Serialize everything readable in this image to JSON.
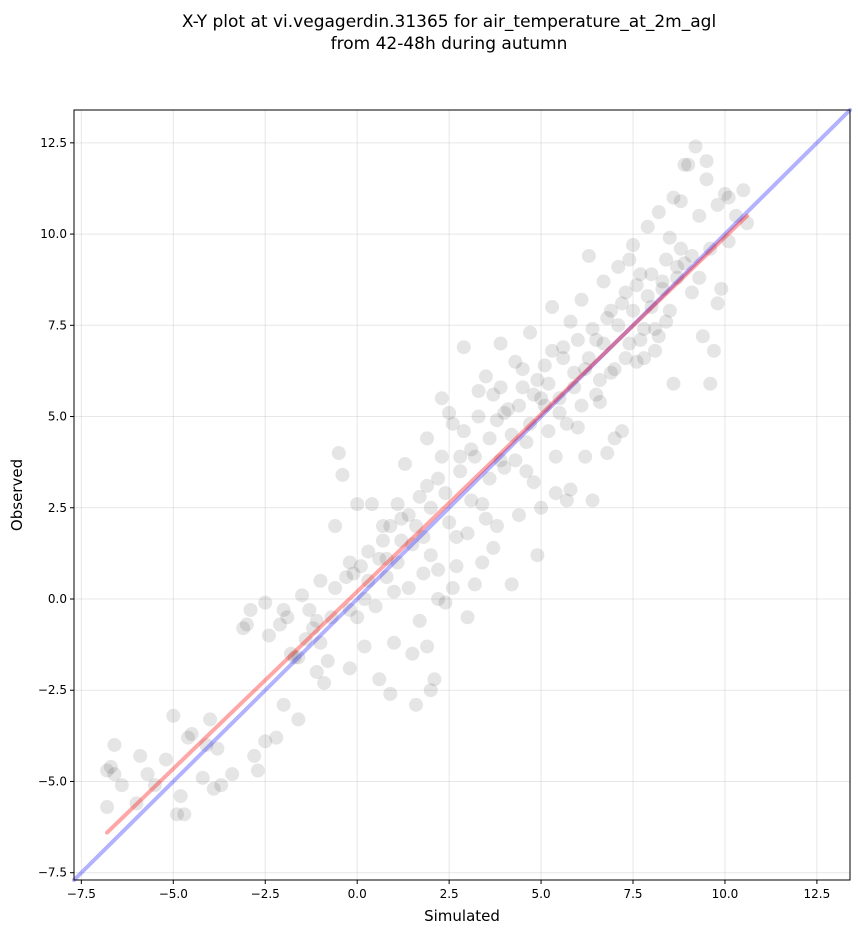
{
  "chart_data": {
    "type": "scatter",
    "title_line1": "X-Y plot at vi.vegagerdin.31365 for air_temperature_at_2m_agl",
    "title_line2": "from 42-48h during autumn",
    "xlabel": "Simulated",
    "ylabel": "Observed",
    "xlim": [
      -7.7,
      13.4
    ],
    "ylim": [
      -7.7,
      13.4
    ],
    "xticks": [
      -7.5,
      -5.0,
      -2.5,
      0.0,
      2.5,
      5.0,
      7.5,
      10.0,
      12.5
    ],
    "yticks": [
      -7.5,
      -5.0,
      -2.5,
      0.0,
      2.5,
      5.0,
      7.5,
      10.0,
      12.5
    ],
    "xtick_labels": [
      "−7.5",
      "−5.0",
      "−2.5",
      "0.0",
      "2.5",
      "5.0",
      "7.5",
      "10.0",
      "12.5"
    ],
    "ytick_labels": [
      "−7.5",
      "−5.0",
      "−2.5",
      "0.0",
      "2.5",
      "5.0",
      "7.5",
      "10.0",
      "12.5"
    ],
    "grid": true,
    "point_color": "#000000",
    "point_alpha": 0.1,
    "identity_line": {
      "x": [
        -7.7,
        13.4
      ],
      "y": [
        -7.7,
        13.4
      ],
      "color": "#0000ff",
      "alpha": 0.3
    },
    "fit_line": {
      "x": [
        -6.8,
        10.6
      ],
      "y": [
        -6.4,
        10.5
      ],
      "color": "#ff0000",
      "alpha": 0.35
    },
    "points": [
      [
        -6.8,
        -4.7
      ],
      [
        -6.7,
        -4.6
      ],
      [
        -6.6,
        -4.0
      ],
      [
        -6.6,
        -4.8
      ],
      [
        -6.8,
        -5.7
      ],
      [
        -6.4,
        -5.1
      ],
      [
        -6.0,
        -5.6
      ],
      [
        -5.9,
        -4.3
      ],
      [
        -5.7,
        -4.8
      ],
      [
        -5.5,
        -5.1
      ],
      [
        -5.2,
        -4.4
      ],
      [
        -5.0,
        -3.2
      ],
      [
        -4.9,
        -5.9
      ],
      [
        -4.8,
        -5.4
      ],
      [
        -4.7,
        -5.9
      ],
      [
        -4.6,
        -3.8
      ],
      [
        -4.5,
        -3.7
      ],
      [
        -4.2,
        -4.9
      ],
      [
        -4.1,
        -4.0
      ],
      [
        -4.0,
        -3.3
      ],
      [
        -3.9,
        -5.2
      ],
      [
        -3.8,
        -4.1
      ],
      [
        -3.7,
        -5.1
      ],
      [
        -3.4,
        -4.8
      ],
      [
        -2.8,
        -4.3
      ],
      [
        -2.7,
        -4.7
      ],
      [
        -2.5,
        -3.9
      ],
      [
        -2.2,
        -3.8
      ],
      [
        -3.1,
        -0.8
      ],
      [
        -3.0,
        -0.7
      ],
      [
        -2.9,
        -0.3
      ],
      [
        -2.5,
        -0.1
      ],
      [
        -2.4,
        -1.0
      ],
      [
        -2.1,
        -0.7
      ],
      [
        -2.0,
        -0.3
      ],
      [
        -1.9,
        -0.5
      ],
      [
        -1.8,
        -1.5
      ],
      [
        -1.7,
        -1.6
      ],
      [
        -1.5,
        0.1
      ],
      [
        -1.4,
        -1.1
      ],
      [
        -1.3,
        -0.3
      ],
      [
        -1.2,
        -0.8
      ],
      [
        -1.1,
        -0.6
      ],
      [
        -1.0,
        0.5
      ],
      [
        -0.9,
        -2.3
      ],
      [
        -0.8,
        -1.7
      ],
      [
        -0.7,
        -0.5
      ],
      [
        -0.6,
        2.0
      ],
      [
        -0.5,
        4.0
      ],
      [
        -0.4,
        3.4
      ],
      [
        -0.3,
        0.6
      ],
      [
        -0.2,
        -1.9
      ],
      [
        -0.2,
        1.0
      ],
      [
        -0.1,
        0.7
      ],
      [
        0.0,
        2.6
      ],
      [
        0.0,
        -0.5
      ],
      [
        0.1,
        0.9
      ],
      [
        0.2,
        -1.3
      ],
      [
        0.3,
        1.3
      ],
      [
        0.4,
        2.6
      ],
      [
        0.5,
        -0.2
      ],
      [
        0.6,
        -2.2
      ],
      [
        0.7,
        1.6
      ],
      [
        0.8,
        0.6
      ],
      [
        0.9,
        2.0
      ],
      [
        1.0,
        -1.2
      ],
      [
        1.1,
        1.0
      ],
      [
        1.2,
        2.2
      ],
      [
        1.3,
        3.7
      ],
      [
        1.4,
        0.3
      ],
      [
        1.5,
        1.5
      ],
      [
        1.6,
        -2.9
      ],
      [
        1.7,
        2.8
      ],
      [
        1.8,
        0.7
      ],
      [
        1.9,
        4.4
      ],
      [
        2.0,
        1.2
      ],
      [
        2.1,
        -2.2
      ],
      [
        2.2,
        3.3
      ],
      [
        2.3,
        5.5
      ],
      [
        2.4,
        -0.1
      ],
      [
        2.5,
        2.1
      ],
      [
        2.6,
        4.8
      ],
      [
        2.7,
        0.9
      ],
      [
        2.8,
        3.9
      ],
      [
        2.9,
        6.9
      ],
      [
        3.0,
        1.8
      ],
      [
        3.1,
        4.1
      ],
      [
        3.2,
        0.4
      ],
      [
        3.3,
        5.7
      ],
      [
        3.4,
        2.6
      ],
      [
        3.5,
        6.1
      ],
      [
        3.6,
        3.3
      ],
      [
        3.7,
        1.4
      ],
      [
        3.8,
        4.9
      ],
      [
        3.9,
        7.0
      ],
      [
        4.0,
        3.6
      ],
      [
        4.1,
        5.2
      ],
      [
        4.2,
        0.4
      ],
      [
        4.3,
        6.5
      ],
      [
        4.4,
        2.3
      ],
      [
        4.5,
        5.8
      ],
      [
        4.6,
        4.3
      ],
      [
        4.7,
        7.3
      ],
      [
        4.8,
        3.2
      ],
      [
        4.9,
        1.2
      ],
      [
        5.0,
        5.5
      ],
      [
        5.1,
        6.4
      ],
      [
        5.2,
        4.6
      ],
      [
        5.3,
        8.0
      ],
      [
        5.4,
        3.9
      ],
      [
        5.5,
        5.1
      ],
      [
        5.6,
        6.9
      ],
      [
        5.7,
        2.7
      ],
      [
        5.8,
        7.6
      ],
      [
        5.9,
        5.8
      ],
      [
        6.0,
        4.7
      ],
      [
        6.1,
        8.2
      ],
      [
        6.2,
        6.3
      ],
      [
        6.3,
        9.4
      ],
      [
        6.4,
        2.7
      ],
      [
        6.5,
        7.1
      ],
      [
        6.6,
        5.4
      ],
      [
        6.7,
        8.7
      ],
      [
        6.8,
        4.0
      ],
      [
        6.9,
        7.9
      ],
      [
        7.0,
        6.3
      ],
      [
        7.1,
        9.1
      ],
      [
        7.2,
        4.6
      ],
      [
        7.3,
        8.4
      ],
      [
        7.4,
        7.0
      ],
      [
        7.5,
        9.7
      ],
      [
        7.6,
        6.5
      ],
      [
        7.7,
        8.9
      ],
      [
        7.8,
        7.4
      ],
      [
        7.9,
        10.2
      ],
      [
        8.0,
        8.0
      ],
      [
        8.1,
        6.8
      ],
      [
        8.2,
        10.6
      ],
      [
        8.3,
        8.5
      ],
      [
        8.4,
        7.6
      ],
      [
        8.5,
        9.9
      ],
      [
        8.6,
        5.9
      ],
      [
        8.7,
        8.8
      ],
      [
        8.8,
        10.9
      ],
      [
        8.9,
        9.2
      ],
      [
        9.0,
        11.9
      ],
      [
        9.1,
        8.4
      ],
      [
        9.2,
        12.4
      ],
      [
        9.3,
        10.5
      ],
      [
        9.4,
        7.2
      ],
      [
        9.5,
        11.5
      ],
      [
        9.6,
        9.6
      ],
      [
        9.7,
        6.8
      ],
      [
        9.8,
        10.8
      ],
      [
        9.9,
        8.5
      ],
      [
        10.0,
        11.1
      ],
      [
        10.1,
        9.8
      ],
      [
        10.3,
        10.5
      ],
      [
        10.5,
        11.2
      ],
      [
        10.6,
        10.3
      ],
      [
        9.6,
        5.9
      ],
      [
        9.8,
        8.1
      ],
      [
        9.5,
        12.0
      ],
      [
        10.1,
        11.0
      ],
      [
        8.9,
        11.9
      ],
      [
        8.6,
        11.0
      ],
      [
        8.2,
        7.2
      ],
      [
        7.8,
        6.6
      ],
      [
        7.4,
        9.3
      ],
      [
        7.0,
        4.4
      ],
      [
        6.6,
        6.0
      ],
      [
        6.2,
        3.9
      ],
      [
        5.8,
        3.0
      ],
      [
        5.4,
        2.9
      ],
      [
        5.0,
        2.5
      ],
      [
        4.6,
        3.5
      ],
      [
        4.2,
        4.5
      ],
      [
        3.8,
        2.0
      ],
      [
        3.4,
        1.0
      ],
      [
        3.0,
        -0.5
      ],
      [
        2.6,
        0.3
      ],
      [
        2.2,
        0.8
      ],
      [
        1.8,
        1.7
      ],
      [
        1.4,
        2.3
      ],
      [
        1.0,
        0.2
      ],
      [
        0.6,
        1.1
      ],
      [
        0.2,
        0.0
      ],
      [
        -0.2,
        -0.3
      ],
      [
        -0.6,
        0.3
      ],
      [
        -1.0,
        -1.2
      ],
      [
        -1.6,
        -1.6
      ],
      [
        -2.0,
        -2.9
      ],
      [
        -1.6,
        -3.3
      ],
      [
        -1.1,
        -2.0
      ],
      [
        0.9,
        -2.6
      ],
      [
        1.5,
        -1.5
      ],
      [
        1.9,
        -1.3
      ],
      [
        2.0,
        -2.5
      ],
      [
        2.2,
        0.0
      ],
      [
        1.7,
        -0.6
      ],
      [
        2.7,
        1.7
      ],
      [
        3.1,
        2.7
      ],
      [
        3.5,
        2.2
      ],
      [
        3.9,
        3.8
      ],
      [
        4.3,
        3.8
      ],
      [
        4.7,
        4.8
      ],
      [
        5.1,
        5.3
      ],
      [
        5.5,
        5.5
      ],
      [
        5.9,
        6.2
      ],
      [
        6.3,
        6.6
      ],
      [
        6.7,
        7.0
      ],
      [
        7.1,
        7.5
      ],
      [
        7.5,
        7.9
      ],
      [
        7.9,
        8.3
      ],
      [
        8.3,
        8.7
      ],
      [
        8.7,
        9.1
      ],
      [
        9.1,
        9.4
      ],
      [
        4.4,
        5.3
      ],
      [
        4.8,
        5.6
      ],
      [
        5.2,
        5.9
      ],
      [
        3.6,
        4.4
      ],
      [
        3.2,
        3.9
      ],
      [
        2.8,
        3.5
      ],
      [
        2.4,
        2.9
      ],
      [
        2.0,
        2.5
      ],
      [
        1.6,
        2.0
      ],
      [
        1.2,
        1.6
      ],
      [
        0.8,
        1.1
      ],
      [
        4.0,
        5.1
      ],
      [
        5.6,
        6.6
      ],
      [
        6.0,
        7.1
      ],
      [
        6.4,
        7.4
      ],
      [
        6.8,
        7.7
      ],
      [
        7.2,
        8.1
      ],
      [
        7.6,
        8.6
      ],
      [
        8.0,
        8.9
      ],
      [
        8.4,
        9.3
      ],
      [
        8.8,
        9.6
      ],
      [
        3.9,
        5.8
      ],
      [
        4.5,
        6.3
      ],
      [
        5.3,
        6.8
      ],
      [
        6.1,
        5.3
      ],
      [
        6.9,
        6.2
      ],
      [
        7.7,
        7.1
      ],
      [
        8.5,
        7.9
      ],
      [
        9.3,
        8.8
      ],
      [
        2.3,
        3.9
      ],
      [
        2.9,
        4.6
      ],
      [
        3.3,
        5.0
      ],
      [
        1.9,
        3.1
      ],
      [
        1.1,
        2.6
      ],
      [
        0.7,
        2.0
      ],
      [
        0.3,
        0.5
      ],
      [
        2.5,
        5.1
      ],
      [
        3.7,
        5.6
      ],
      [
        4.9,
        6.0
      ],
      [
        5.7,
        4.8
      ],
      [
        6.5,
        5.6
      ],
      [
        7.3,
        6.6
      ],
      [
        8.1,
        7.4
      ]
    ]
  }
}
